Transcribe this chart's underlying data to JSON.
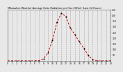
{
  "title": "Milwaukee Weather Average Solar Radiation per Hour W/m2 (Last 24 Hours)",
  "x_values": [
    0,
    1,
    2,
    3,
    4,
    5,
    6,
    7,
    8,
    9,
    10,
    11,
    12,
    13,
    14,
    15,
    16,
    17,
    18,
    19,
    20,
    21,
    22,
    23
  ],
  "y_values": [
    0,
    0,
    0,
    0,
    0,
    0,
    0,
    2,
    18,
    70,
    180,
    340,
    420,
    390,
    290,
    230,
    170,
    110,
    50,
    10,
    0,
    0,
    0,
    0
  ],
  "line_color": "#cc0000",
  "bg_color": "#e8e8e8",
  "plot_bg": "#e8e8e8",
  "grid_color": "#999999",
  "ylim": [
    0,
    450
  ],
  "xlim": [
    0,
    23
  ],
  "ytick_values": [
    50,
    100,
    150,
    200,
    250,
    300,
    350,
    400,
    450
  ],
  "xtick_values": [
    0,
    1,
    2,
    3,
    4,
    5,
    6,
    7,
    8,
    9,
    10,
    11,
    12,
    13,
    14,
    15,
    16,
    17,
    18,
    19,
    20,
    21,
    22,
    23
  ],
  "title_fontsize": 2.5,
  "tick_fontsize": 2.2
}
